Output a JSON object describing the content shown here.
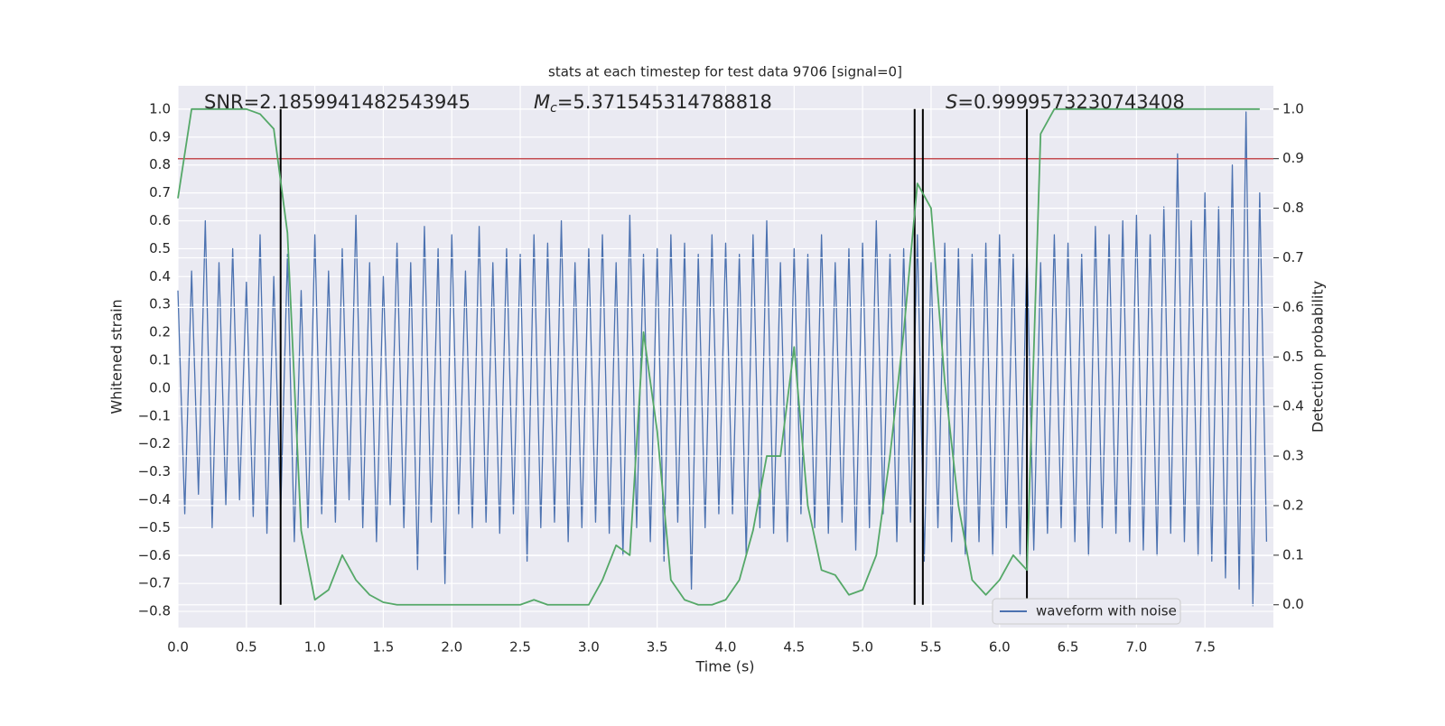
{
  "chart_data": {
    "type": "line",
    "title": "stats at each timestep for test data 9706 [signal=0]",
    "xlabel": "Time (s)",
    "ylabel": "Whitened strain",
    "y2label": "Detection probability",
    "xlim": [
      0,
      8.0
    ],
    "ylim": [
      -0.858,
      1.084
    ],
    "y2lim": [
      -0.046,
      1.047
    ],
    "xticks": [
      {
        "value": 0,
        "label": "0.0"
      },
      {
        "value": 0.5,
        "label": "0.5"
      },
      {
        "value": 1,
        "label": "1.0"
      },
      {
        "value": 1.5,
        "label": "1.5"
      },
      {
        "value": 2,
        "label": "2.0"
      },
      {
        "value": 2.5,
        "label": "2.5"
      },
      {
        "value": 3,
        "label": "3.0"
      },
      {
        "value": 3.5,
        "label": "3.5"
      },
      {
        "value": 4,
        "label": "4.0"
      },
      {
        "value": 4.5,
        "label": "4.5"
      },
      {
        "value": 5,
        "label": "5.0"
      },
      {
        "value": 5.5,
        "label": "5.5"
      },
      {
        "value": 6,
        "label": "6.0"
      },
      {
        "value": 6.5,
        "label": "6.5"
      },
      {
        "value": 7,
        "label": "7.0"
      },
      {
        "value": 7.5,
        "label": "7.5"
      }
    ],
    "yticks": [
      {
        "value": -0.8,
        "label": "−0.8"
      },
      {
        "value": -0.7,
        "label": "−0.7"
      },
      {
        "value": -0.6,
        "label": "−0.6"
      },
      {
        "value": -0.5,
        "label": "−0.5"
      },
      {
        "value": -0.4,
        "label": "−0.4"
      },
      {
        "value": -0.3,
        "label": "−0.3"
      },
      {
        "value": -0.2,
        "label": "−0.2"
      },
      {
        "value": -0.1,
        "label": "−0.1"
      },
      {
        "value": 0,
        "label": "0.0"
      },
      0.1,
      0.2,
      0.3,
      0.4,
      0.5,
      0.6,
      0.7,
      0.8,
      0.9,
      {
        "value": 1,
        "label": "1.0"
      }
    ],
    "y2ticks": [
      {
        "value": 0,
        "label": "0.0"
      },
      0.1,
      0.2,
      0.3,
      0.4,
      0.5,
      0.6,
      0.7,
      0.8,
      0.9,
      {
        "value": 1,
        "label": "1.0"
      }
    ],
    "grid": true,
    "legend": "lower right",
    "annotations": [
      {
        "text": "SNR=2.1859941482543945"
      },
      {
        "symbol": "M",
        "subscript": "c",
        "text": "=5.371545314788818"
      },
      {
        "symbol": "S",
        "text": "=0.9999573230743408"
      }
    ],
    "threshold": {
      "value": 0.9,
      "axis": "y2",
      "color": "#c44e52"
    },
    "vlines": {
      "x": [
        0.75,
        5.38,
        5.44,
        6.2
      ],
      "ymin": 0,
      "ymax": 1,
      "axis": "y2",
      "color": "#000000"
    },
    "series": [
      {
        "name": "waveform with noise",
        "color": "#4c72b0",
        "x": [
          0,
          0.05,
          0.1,
          0.15,
          0.2,
          0.25,
          0.3,
          0.35,
          0.4,
          0.45,
          0.5,
          0.55,
          0.6,
          0.65,
          0.7,
          0.75,
          0.8,
          0.85,
          0.9,
          0.95,
          1,
          1.05,
          1.1,
          1.15,
          1.2,
          1.25,
          1.3,
          1.35,
          1.4,
          1.45,
          1.5,
          1.55,
          1.6,
          1.65,
          1.7,
          1.75,
          1.8,
          1.85,
          1.9,
          1.95,
          2,
          2.05,
          2.1,
          2.15,
          2.2,
          2.25,
          2.3,
          2.35,
          2.4,
          2.45,
          2.5,
          2.55,
          2.6,
          2.65,
          2.7,
          2.75,
          2.8,
          2.85,
          2.9,
          2.95,
          3,
          3.05,
          3.1,
          3.15,
          3.2,
          3.25,
          3.3,
          3.35,
          3.4,
          3.45,
          3.5,
          3.55,
          3.6,
          3.65,
          3.7,
          3.75,
          3.8,
          3.85,
          3.9,
          3.95,
          4,
          4.05,
          4.1,
          4.15,
          4.2,
          4.25,
          4.3,
          4.35,
          4.4,
          4.45,
          4.5,
          4.55,
          4.6,
          4.65,
          4.7,
          4.75,
          4.8,
          4.85,
          4.9,
          4.95,
          5,
          5.05,
          5.1,
          5.15,
          5.2,
          5.25,
          5.3,
          5.35,
          5.4,
          5.45,
          5.5,
          5.55,
          5.6,
          5.65,
          5.7,
          5.75,
          5.8,
          5.85,
          5.9,
          5.95,
          6,
          6.05,
          6.1,
          6.15,
          6.2,
          6.25,
          6.3,
          6.35,
          6.4,
          6.45,
          6.5,
          6.55,
          6.6,
          6.65,
          6.7,
          6.75,
          6.8,
          6.85,
          6.9,
          6.95,
          7,
          7.05,
          7.1,
          7.15,
          7.2,
          7.25,
          7.3,
          7.35,
          7.4,
          7.45,
          7.5,
          7.55,
          7.6,
          7.65,
          7.7,
          7.75,
          7.8,
          7.85,
          7.9,
          7.95
        ],
        "values": [
          0.35,
          -0.45,
          0.42,
          -0.38,
          0.6,
          -0.5,
          0.45,
          -0.42,
          0.5,
          -0.4,
          0.38,
          -0.46,
          0.55,
          -0.52,
          0.4,
          -0.45,
          0.48,
          -0.55,
          0.35,
          -0.5,
          0.55,
          -0.45,
          0.42,
          -0.48,
          0.5,
          -0.4,
          0.62,
          -0.5,
          0.45,
          -0.55,
          0.4,
          -0.42,
          0.52,
          -0.5,
          0.45,
          -0.65,
          0.58,
          -0.48,
          0.5,
          -0.7,
          0.55,
          -0.45,
          0.42,
          -0.5,
          0.58,
          -0.48,
          0.45,
          -0.52,
          0.5,
          -0.45,
          0.48,
          -0.62,
          0.55,
          -0.5,
          0.52,
          -0.48,
          0.6,
          -0.55,
          0.45,
          -0.5,
          0.5,
          -0.48,
          0.55,
          -0.52,
          0.45,
          -0.6,
          0.62,
          -0.5,
          0.48,
          -0.55,
          0.5,
          -0.62,
          0.55,
          -0.48,
          0.52,
          -0.72,
          0.48,
          -0.5,
          0.55,
          -0.45,
          0.52,
          -0.45,
          0.48,
          -0.6,
          0.55,
          -0.5,
          0.6,
          -0.52,
          0.45,
          -0.55,
          0.5,
          -0.45,
          0.48,
          -0.5,
          0.55,
          -0.52,
          0.45,
          -0.48,
          0.5,
          -0.58,
          0.52,
          -0.5,
          0.6,
          -0.45,
          0.48,
          -0.55,
          0.5,
          -0.48,
          0.55,
          -0.62,
          0.45,
          -0.5,
          0.52,
          -0.55,
          0.5,
          -0.6,
          0.48,
          -0.55,
          0.52,
          -0.6,
          0.55,
          -0.5,
          0.48,
          -0.6,
          0.5,
          -0.58,
          0.45,
          -0.52,
          0.55,
          -0.5,
          0.52,
          -0.55,
          0.48,
          -0.6,
          0.58,
          -0.5,
          0.55,
          -0.52,
          0.6,
          -0.55,
          0.62,
          -0.58,
          0.55,
          -0.6,
          0.65,
          -0.52,
          0.84,
          -0.55,
          0.6,
          -0.6,
          0.7,
          -0.62,
          0.65,
          -0.68,
          0.8,
          -0.72,
          0.99,
          -0.78,
          0.7,
          -0.55
        ]
      },
      {
        "color": "#55a868",
        "axis": "y2",
        "x": [
          0,
          0.1,
          0.2,
          0.3,
          0.4,
          0.5,
          0.6,
          0.7,
          0.8,
          0.9,
          1,
          1.1,
          1.2,
          1.3,
          1.4,
          1.5,
          1.6,
          1.7,
          1.8,
          1.9,
          2,
          2.1,
          2.2,
          2.3,
          2.4,
          2.5,
          2.6,
          2.7,
          2.8,
          2.9,
          3,
          3.1,
          3.2,
          3.3,
          3.4,
          3.5,
          3.6,
          3.7,
          3.8,
          3.9,
          4,
          4.1,
          4.2,
          4.3,
          4.4,
          4.5,
          4.6,
          4.7,
          4.8,
          4.9,
          5,
          5.1,
          5.2,
          5.3,
          5.4,
          5.5,
          5.6,
          5.7,
          5.8,
          5.9,
          6,
          6.1,
          6.2,
          6.3,
          6.4,
          6.5,
          6.6,
          6.7,
          6.8,
          6.9,
          7,
          7.1,
          7.2,
          7.3,
          7.4,
          7.5,
          7.6,
          7.7,
          7.8,
          7.9
        ],
        "values": [
          0.82,
          1.0,
          1.0,
          1.0,
          1.0,
          1.0,
          0.99,
          0.96,
          0.75,
          0.15,
          0.01,
          0.03,
          0.1,
          0.05,
          0.02,
          0.005,
          0.0,
          0.0,
          0.0,
          0.0,
          0.0,
          0.0,
          0.0,
          0.0,
          0.0,
          0.0,
          0.01,
          0.0,
          0.0,
          0.0,
          0.0,
          0.05,
          0.12,
          0.1,
          0.55,
          0.35,
          0.05,
          0.01,
          0.0,
          0.0,
          0.01,
          0.05,
          0.15,
          0.3,
          0.3,
          0.52,
          0.2,
          0.07,
          0.06,
          0.02,
          0.03,
          0.1,
          0.3,
          0.55,
          0.85,
          0.8,
          0.45,
          0.2,
          0.05,
          0.02,
          0.05,
          0.1,
          0.07,
          0.95,
          1.0,
          1.0,
          1.0,
          1.0,
          1.0,
          1.0,
          1.0,
          1.0,
          1.0,
          1.0,
          1.0,
          1.0,
          1.0,
          1.0,
          1.0,
          1.0
        ]
      }
    ]
  }
}
